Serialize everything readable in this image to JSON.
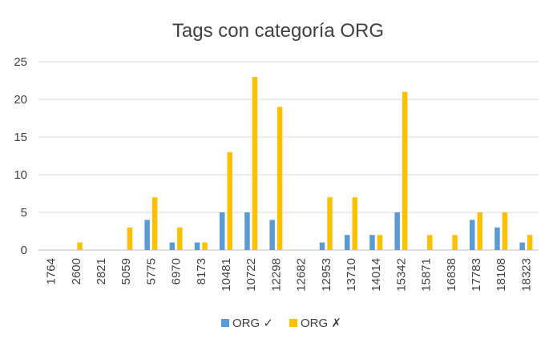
{
  "chart_data": {
    "type": "bar",
    "title": "Tags con categoría ORG",
    "xlabel": "",
    "ylabel": "",
    "ylim": [
      0,
      25
    ],
    "y_ticks": [
      0,
      5,
      10,
      15,
      20,
      25
    ],
    "grid": true,
    "legend_position": "bottom",
    "categories": [
      "1764",
      "2600",
      "2821",
      "5059",
      "5775",
      "6970",
      "8173",
      "10481",
      "10722",
      "12298",
      "12682",
      "12953",
      "13710",
      "14014",
      "15342",
      "15871",
      "16838",
      "17783",
      "18108",
      "18323"
    ],
    "series": [
      {
        "name": "ORG ✓",
        "color": "#5b9bd5",
        "values": [
          0,
          0,
          0,
          0,
          4,
          1,
          1,
          5,
          5,
          4,
          0,
          1,
          2,
          2,
          5,
          0,
          0,
          4,
          3,
          1
        ]
      },
      {
        "name": "ORG ✗",
        "color": "#ffc000",
        "values": [
          0,
          1,
          0,
          3,
          7,
          3,
          1,
          13,
          23,
          19,
          0,
          7,
          7,
          2,
          21,
          2,
          2,
          5,
          5,
          2
        ]
      }
    ]
  }
}
